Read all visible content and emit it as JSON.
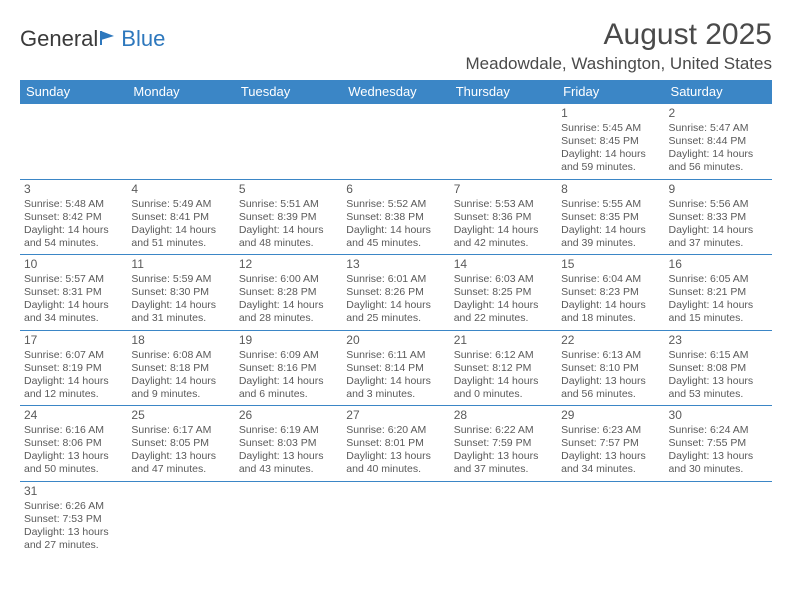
{
  "logo": {
    "text_general": "General",
    "text_blue": "Blue"
  },
  "header": {
    "month_title": "August 2025",
    "location": "Meadowdale, Washington, United States"
  },
  "colors": {
    "header_bg": "#3b86c6",
    "header_text": "#ffffff",
    "border": "#3b86c6",
    "text": "#5a5a5a"
  },
  "day_names": [
    "Sunday",
    "Monday",
    "Tuesday",
    "Wednesday",
    "Thursday",
    "Friday",
    "Saturday"
  ],
  "weeks": [
    [
      null,
      null,
      null,
      null,
      null,
      {
        "n": "1",
        "sr": "Sunrise: 5:45 AM",
        "ss": "Sunset: 8:45 PM",
        "d1": "Daylight: 14 hours",
        "d2": "and 59 minutes."
      },
      {
        "n": "2",
        "sr": "Sunrise: 5:47 AM",
        "ss": "Sunset: 8:44 PM",
        "d1": "Daylight: 14 hours",
        "d2": "and 56 minutes."
      }
    ],
    [
      {
        "n": "3",
        "sr": "Sunrise: 5:48 AM",
        "ss": "Sunset: 8:42 PM",
        "d1": "Daylight: 14 hours",
        "d2": "and 54 minutes."
      },
      {
        "n": "4",
        "sr": "Sunrise: 5:49 AM",
        "ss": "Sunset: 8:41 PM",
        "d1": "Daylight: 14 hours",
        "d2": "and 51 minutes."
      },
      {
        "n": "5",
        "sr": "Sunrise: 5:51 AM",
        "ss": "Sunset: 8:39 PM",
        "d1": "Daylight: 14 hours",
        "d2": "and 48 minutes."
      },
      {
        "n": "6",
        "sr": "Sunrise: 5:52 AM",
        "ss": "Sunset: 8:38 PM",
        "d1": "Daylight: 14 hours",
        "d2": "and 45 minutes."
      },
      {
        "n": "7",
        "sr": "Sunrise: 5:53 AM",
        "ss": "Sunset: 8:36 PM",
        "d1": "Daylight: 14 hours",
        "d2": "and 42 minutes."
      },
      {
        "n": "8",
        "sr": "Sunrise: 5:55 AM",
        "ss": "Sunset: 8:35 PM",
        "d1": "Daylight: 14 hours",
        "d2": "and 39 minutes."
      },
      {
        "n": "9",
        "sr": "Sunrise: 5:56 AM",
        "ss": "Sunset: 8:33 PM",
        "d1": "Daylight: 14 hours",
        "d2": "and 37 minutes."
      }
    ],
    [
      {
        "n": "10",
        "sr": "Sunrise: 5:57 AM",
        "ss": "Sunset: 8:31 PM",
        "d1": "Daylight: 14 hours",
        "d2": "and 34 minutes."
      },
      {
        "n": "11",
        "sr": "Sunrise: 5:59 AM",
        "ss": "Sunset: 8:30 PM",
        "d1": "Daylight: 14 hours",
        "d2": "and 31 minutes."
      },
      {
        "n": "12",
        "sr": "Sunrise: 6:00 AM",
        "ss": "Sunset: 8:28 PM",
        "d1": "Daylight: 14 hours",
        "d2": "and 28 minutes."
      },
      {
        "n": "13",
        "sr": "Sunrise: 6:01 AM",
        "ss": "Sunset: 8:26 PM",
        "d1": "Daylight: 14 hours",
        "d2": "and 25 minutes."
      },
      {
        "n": "14",
        "sr": "Sunrise: 6:03 AM",
        "ss": "Sunset: 8:25 PM",
        "d1": "Daylight: 14 hours",
        "d2": "and 22 minutes."
      },
      {
        "n": "15",
        "sr": "Sunrise: 6:04 AM",
        "ss": "Sunset: 8:23 PM",
        "d1": "Daylight: 14 hours",
        "d2": "and 18 minutes."
      },
      {
        "n": "16",
        "sr": "Sunrise: 6:05 AM",
        "ss": "Sunset: 8:21 PM",
        "d1": "Daylight: 14 hours",
        "d2": "and 15 minutes."
      }
    ],
    [
      {
        "n": "17",
        "sr": "Sunrise: 6:07 AM",
        "ss": "Sunset: 8:19 PM",
        "d1": "Daylight: 14 hours",
        "d2": "and 12 minutes."
      },
      {
        "n": "18",
        "sr": "Sunrise: 6:08 AM",
        "ss": "Sunset: 8:18 PM",
        "d1": "Daylight: 14 hours",
        "d2": "and 9 minutes."
      },
      {
        "n": "19",
        "sr": "Sunrise: 6:09 AM",
        "ss": "Sunset: 8:16 PM",
        "d1": "Daylight: 14 hours",
        "d2": "and 6 minutes."
      },
      {
        "n": "20",
        "sr": "Sunrise: 6:11 AM",
        "ss": "Sunset: 8:14 PM",
        "d1": "Daylight: 14 hours",
        "d2": "and 3 minutes."
      },
      {
        "n": "21",
        "sr": "Sunrise: 6:12 AM",
        "ss": "Sunset: 8:12 PM",
        "d1": "Daylight: 14 hours",
        "d2": "and 0 minutes."
      },
      {
        "n": "22",
        "sr": "Sunrise: 6:13 AM",
        "ss": "Sunset: 8:10 PM",
        "d1": "Daylight: 13 hours",
        "d2": "and 56 minutes."
      },
      {
        "n": "23",
        "sr": "Sunrise: 6:15 AM",
        "ss": "Sunset: 8:08 PM",
        "d1": "Daylight: 13 hours",
        "d2": "and 53 minutes."
      }
    ],
    [
      {
        "n": "24",
        "sr": "Sunrise: 6:16 AM",
        "ss": "Sunset: 8:06 PM",
        "d1": "Daylight: 13 hours",
        "d2": "and 50 minutes."
      },
      {
        "n": "25",
        "sr": "Sunrise: 6:17 AM",
        "ss": "Sunset: 8:05 PM",
        "d1": "Daylight: 13 hours",
        "d2": "and 47 minutes."
      },
      {
        "n": "26",
        "sr": "Sunrise: 6:19 AM",
        "ss": "Sunset: 8:03 PM",
        "d1": "Daylight: 13 hours",
        "d2": "and 43 minutes."
      },
      {
        "n": "27",
        "sr": "Sunrise: 6:20 AM",
        "ss": "Sunset: 8:01 PM",
        "d1": "Daylight: 13 hours",
        "d2": "and 40 minutes."
      },
      {
        "n": "28",
        "sr": "Sunrise: 6:22 AM",
        "ss": "Sunset: 7:59 PM",
        "d1": "Daylight: 13 hours",
        "d2": "and 37 minutes."
      },
      {
        "n": "29",
        "sr": "Sunrise: 6:23 AM",
        "ss": "Sunset: 7:57 PM",
        "d1": "Daylight: 13 hours",
        "d2": "and 34 minutes."
      },
      {
        "n": "30",
        "sr": "Sunrise: 6:24 AM",
        "ss": "Sunset: 7:55 PM",
        "d1": "Daylight: 13 hours",
        "d2": "and 30 minutes."
      }
    ],
    [
      {
        "n": "31",
        "sr": "Sunrise: 6:26 AM",
        "ss": "Sunset: 7:53 PM",
        "d1": "Daylight: 13 hours",
        "d2": "and 27 minutes."
      },
      null,
      null,
      null,
      null,
      null,
      null
    ]
  ]
}
